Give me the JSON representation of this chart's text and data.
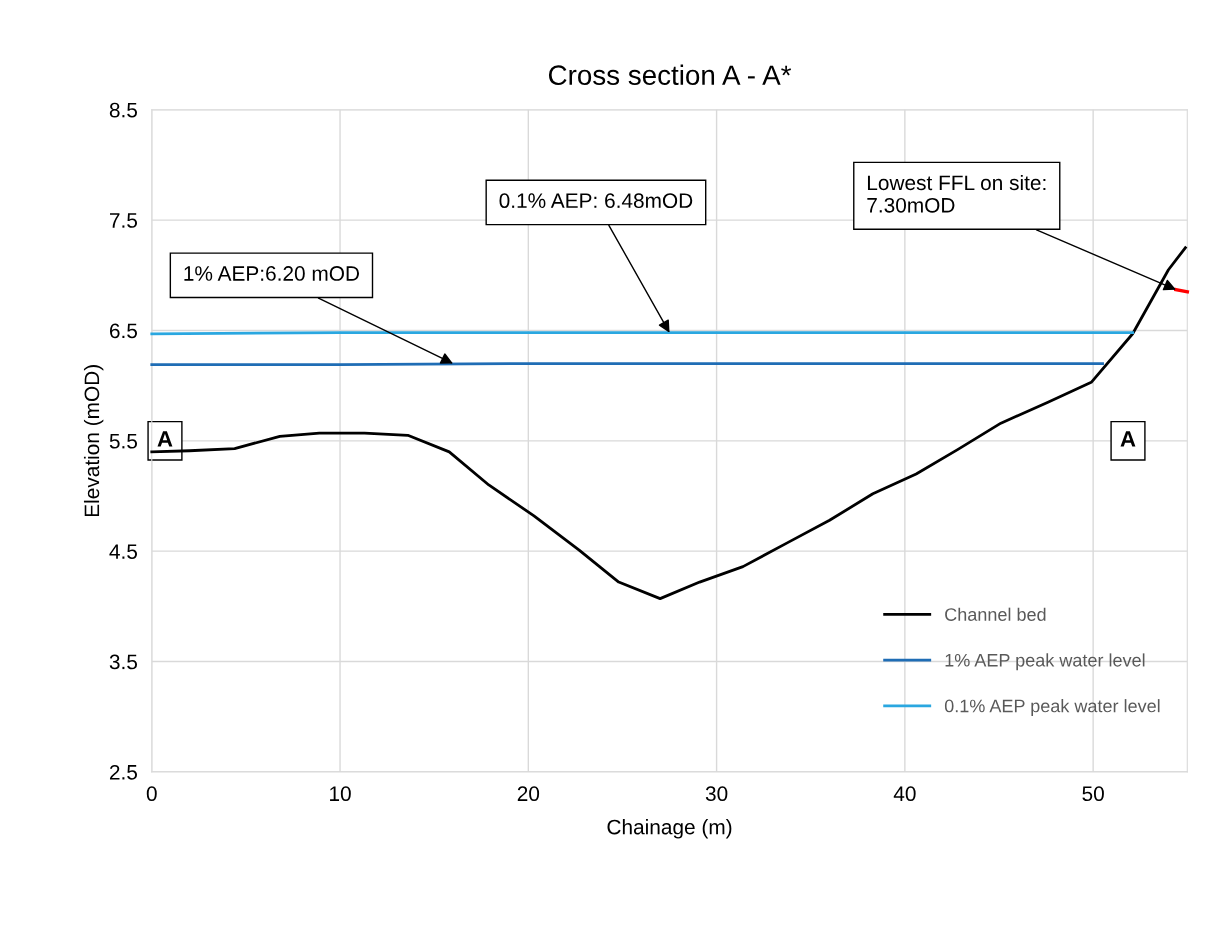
{
  "chart_data": {
    "type": "line",
    "title": "Cross section A - A*",
    "xlabel": "Chainage (m)",
    "ylabel": "Elevation (mOD)",
    "xlim": [
      0,
      55
    ],
    "xticks": [
      0,
      10,
      20,
      30,
      40,
      50
    ],
    "ylim": [
      2.5,
      8.5
    ],
    "yticks": [
      2.5,
      3.5,
      4.5,
      5.5,
      6.5,
      7.5,
      8.5
    ],
    "grid": true,
    "legend": "bottom right",
    "marker": "none",
    "line_style": "solid",
    "series": [
      {
        "name": "Channel bed",
        "color": "#000000",
        "x": [
          0,
          2.0,
          4.4,
          6.8,
          8.9,
          11.3,
          13.6,
          15.8,
          17.9,
          20.3,
          22.7,
          24.8,
          27.0,
          29.1,
          31.4,
          33.8,
          36.0,
          38.3,
          40.6,
          42.8,
          45.1,
          47.6,
          49.9,
          52.1,
          54.0,
          54.9
        ],
        "values": [
          5.4,
          5.41,
          5.43,
          5.54,
          5.57,
          5.57,
          5.55,
          5.4,
          5.1,
          4.82,
          4.51,
          4.22,
          4.07,
          4.22,
          4.36,
          4.58,
          4.78,
          5.02,
          5.2,
          5.42,
          5.66,
          5.85,
          6.03,
          6.47,
          7.05,
          7.25
        ]
      },
      {
        "name": "1% AEP peak water level",
        "color": "#1f6db5",
        "x": [
          0,
          10,
          20,
          30,
          40,
          50.5
        ],
        "values": [
          6.19,
          6.19,
          6.2,
          6.2,
          6.2,
          6.2
        ]
      },
      {
        "name": "0.1% AEP peak water level",
        "color": "#2aa7e0",
        "x": [
          0,
          10,
          20,
          30,
          40,
          52.1
        ],
        "values": [
          6.47,
          6.48,
          6.48,
          6.48,
          6.48,
          6.48
        ]
      },
      {
        "color": "#ff0000",
        "x": [
          54.4,
          55
        ],
        "values": [
          6.87,
          6.85
        ]
      }
    ],
    "annotations": [
      {
        "text": "1% AEP:6.20 mOD",
        "x": 16,
        "y": 6.2
      },
      {
        "text": "0.1% AEP: 6.48mOD",
        "x": 27.5,
        "y": 6.48
      },
      "Lowest FFL on site:\n7.30mOD",
      "A",
      "A"
    ]
  }
}
